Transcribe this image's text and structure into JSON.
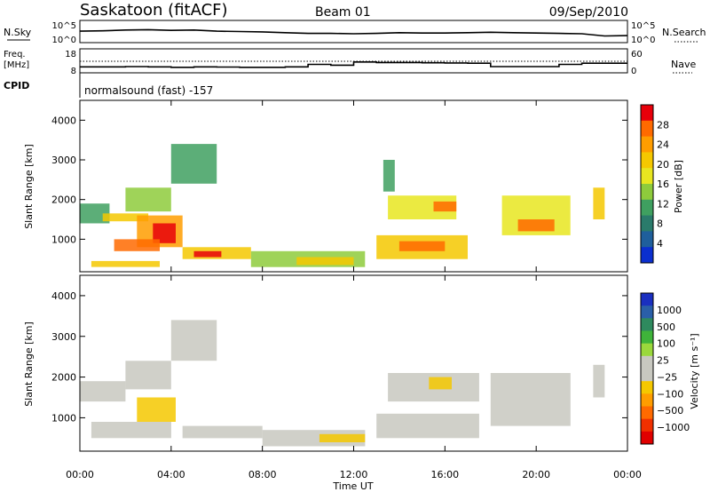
{
  "header": {
    "station": "Saskatoon (fitACF)",
    "beam": "Beam 01",
    "date": "09/Sep/2010"
  },
  "noise_panel": {
    "left_label": "N.Sky",
    "left_ticks": [
      "10^5",
      "10^0"
    ],
    "right_ticks": [
      "10^5",
      "10^0"
    ],
    "right_label": "N.Search"
  },
  "freq_panel": {
    "left_label_1": "Freq.",
    "left_label_2": "[MHz]",
    "left_ticks": [
      "18",
      "8"
    ],
    "right_ticks": [
      "60",
      "0"
    ],
    "right_label": "Nave"
  },
  "cpid_panel": {
    "label": "CPID",
    "text": "normalsound (fast) -157"
  },
  "power_panel": {
    "ylabel": "Slant Range [km]",
    "cbar_label": "Power [dB]",
    "cbar_ticks": [
      "28",
      "24",
      "20",
      "16",
      "12",
      "8",
      "4"
    ],
    "cbar_colors": [
      "#e8000a",
      "#ff6a00",
      "#ff9d00",
      "#f5c800",
      "#e8e620",
      "#8ecb3c",
      "#3fa060",
      "#2a7b6b",
      "#1f5f9c",
      "#0b2fcf"
    ]
  },
  "velocity_panel": {
    "ylabel": "Slant Range [km]",
    "cbar_label": "Velocity [m s⁻¹]",
    "cbar_ticks": [
      "1000",
      "500",
      "100",
      "25",
      "−25",
      "−100",
      "−500",
      "−1000"
    ],
    "cbar_colors": [
      "#1a2fc0",
      "#2a5fa8",
      "#2e8a5e",
      "#3fb43a",
      "#9ad83c",
      "#c8c8c0",
      "#c8c8c0",
      "#f5c800",
      "#ff9d00",
      "#ff6a00",
      "#f03000",
      "#e00000"
    ]
  },
  "xaxis": {
    "label": "Time UT",
    "ticks": [
      "00:00",
      "04:00",
      "08:00",
      "12:00",
      "16:00",
      "20:00",
      "00:00"
    ]
  },
  "chart_data": [
    {
      "type": "line",
      "title": "Saskatoon (fitACF)",
      "xlabel": "Time UT",
      "ylabel": "N.Sky",
      "xlim": [
        0,
        24
      ],
      "series": [
        {
          "name": "N.Sky",
          "x": [
            0,
            1,
            2,
            3,
            4,
            5,
            6,
            7,
            8,
            9,
            10,
            11,
            12,
            13,
            14,
            15,
            16,
            17,
            18,
            19,
            20,
            21,
            22,
            23,
            24
          ],
          "values": [
            2.6,
            2.7,
            2.9,
            3.0,
            2.8,
            2.9,
            2.6,
            2.5,
            2.4,
            2.2,
            2.0,
            2.0,
            1.9,
            2.0,
            2.2,
            2.1,
            2.1,
            2.2,
            2.3,
            2.2,
            2.1,
            2.0,
            1.9,
            1.3,
            1.4
          ]
        }
      ]
    },
    {
      "type": "line",
      "ylabel": "Freq. [MHz]",
      "xlim": [
        0,
        24
      ],
      "ylim": [
        8,
        18
      ],
      "series": [
        {
          "name": "Freq.",
          "x": [
            0,
            1,
            2,
            3,
            4,
            5,
            6,
            7,
            8,
            9,
            10,
            11,
            12,
            13,
            14,
            15,
            16,
            17,
            18,
            19,
            20,
            21,
            22,
            23,
            24
          ],
          "values": [
            10.5,
            10.5,
            10.6,
            10.5,
            10.3,
            10.5,
            10.4,
            10.3,
            10.3,
            10.5,
            11.5,
            11.2,
            12.5,
            12.3,
            12.3,
            12.2,
            12.1,
            12.0,
            10.6,
            10.6,
            10.6,
            11.5,
            12.0,
            12.0,
            12.0
          ]
        }
      ]
    },
    {
      "type": "heatmap",
      "title": "Power [dB]",
      "xlabel": "Time UT",
      "ylabel": "Slant Range [km]",
      "xlim": [
        0,
        24
      ],
      "ylim": [
        180,
        4500
      ],
      "zlim": [
        0,
        30
      ],
      "blobs": [
        {
          "t0": 0.0,
          "t1": 1.3,
          "r0": 1400,
          "r1": 1900,
          "level": 10
        },
        {
          "t0": 1.0,
          "t1": 3.0,
          "r0": 1450,
          "r1": 1650,
          "level": 18
        },
        {
          "t0": 2.0,
          "t1": 4.0,
          "r0": 1700,
          "r1": 2300,
          "level": 14
        },
        {
          "t0": 2.5,
          "t1": 4.5,
          "r0": 800,
          "r1": 1600,
          "level": 22
        },
        {
          "t0": 3.2,
          "t1": 4.2,
          "r0": 900,
          "r1": 1400,
          "level": 27
        },
        {
          "t0": 1.5,
          "t1": 3.5,
          "r0": 700,
          "r1": 1000,
          "level": 24
        },
        {
          "t0": 4.0,
          "t1": 6.0,
          "r0": 2400,
          "r1": 3400,
          "level": 10
        },
        {
          "t0": 0.5,
          "t1": 3.5,
          "r0": 300,
          "r1": 450,
          "level": 20
        },
        {
          "t0": 4.5,
          "t1": 7.5,
          "r0": 500,
          "r1": 800,
          "level": 18
        },
        {
          "t0": 5.0,
          "t1": 6.2,
          "r0": 550,
          "r1": 700,
          "level": 27
        },
        {
          "t0": 7.5,
          "t1": 12.5,
          "r0": 300,
          "r1": 700,
          "level": 14
        },
        {
          "t0": 9.5,
          "t1": 12.0,
          "r0": 350,
          "r1": 550,
          "level": 20
        },
        {
          "t0": 13.0,
          "t1": 17.0,
          "r0": 500,
          "r1": 1100,
          "level": 20
        },
        {
          "t0": 14.0,
          "t1": 16.0,
          "r0": 700,
          "r1": 950,
          "level": 26
        },
        {
          "t0": 13.5,
          "t1": 16.5,
          "r0": 1500,
          "r1": 2100,
          "level": 16
        },
        {
          "t0": 15.5,
          "t1": 16.5,
          "r0": 1700,
          "r1": 1950,
          "level": 25
        },
        {
          "t0": 18.5,
          "t1": 21.5,
          "r0": 1100,
          "r1": 2100,
          "level": 16
        },
        {
          "t0": 19.2,
          "t1": 20.8,
          "r0": 1200,
          "r1": 1500,
          "level": 26
        },
        {
          "t0": 22.5,
          "t1": 23.0,
          "r0": 1500,
          "r1": 2300,
          "level": 18
        },
        {
          "t0": 13.3,
          "t1": 13.8,
          "r0": 2200,
          "r1": 3000,
          "level": 10
        }
      ]
    },
    {
      "type": "heatmap",
      "title": "Velocity [m s⁻¹]",
      "xlabel": "Time UT",
      "ylabel": "Slant Range [km]",
      "xlim": [
        0,
        24
      ],
      "ylim": [
        180,
        4500
      ],
      "zlim": [
        -1000,
        1000
      ],
      "blobs": [
        {
          "t0": 0.0,
          "t1": 2.0,
          "r0": 1400,
          "r1": 1900,
          "level": 0
        },
        {
          "t0": 2.0,
          "t1": 4.0,
          "r0": 1700,
          "r1": 2400,
          "level": 0
        },
        {
          "t0": 4.0,
          "t1": 6.0,
          "r0": 2400,
          "r1": 3400,
          "level": 0
        },
        {
          "t0": 2.5,
          "t1": 4.2,
          "r0": 900,
          "r1": 1500,
          "level": -300
        },
        {
          "t0": 0.5,
          "t1": 4.0,
          "r0": 500,
          "r1": 900,
          "level": 50
        },
        {
          "t0": 4.5,
          "t1": 8.0,
          "r0": 500,
          "r1": 800,
          "level": 0
        },
        {
          "t0": 8.0,
          "t1": 12.5,
          "r0": 300,
          "r1": 700,
          "level": -80
        },
        {
          "t0": 10.5,
          "t1": 12.5,
          "r0": 400,
          "r1": 600,
          "level": -200
        },
        {
          "t0": 13.0,
          "t1": 17.5,
          "r0": 500,
          "r1": 1100,
          "level": -80
        },
        {
          "t0": 13.5,
          "t1": 17.5,
          "r0": 1400,
          "r1": 2100,
          "level": 0
        },
        {
          "t0": 15.3,
          "t1": 16.3,
          "r0": 1700,
          "r1": 2000,
          "level": -300
        },
        {
          "t0": 18.0,
          "t1": 21.5,
          "r0": 800,
          "r1": 2100,
          "level": 0
        },
        {
          "t0": 22.5,
          "t1": 23.0,
          "r0": 1500,
          "r1": 2300,
          "level": 0
        }
      ]
    }
  ]
}
